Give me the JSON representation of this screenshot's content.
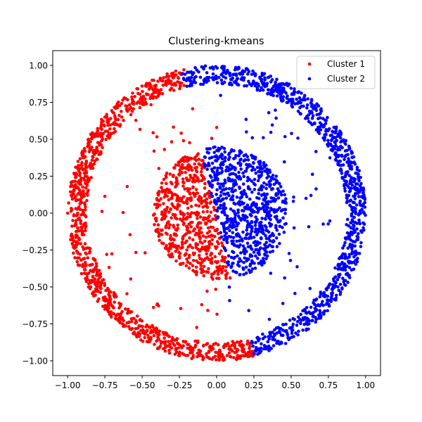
{
  "chart_data": {
    "type": "scatter",
    "title": "Clustering-kmeans",
    "xlabel": "",
    "ylabel": "",
    "xlim": [
      -1.1,
      1.1
    ],
    "ylim": [
      -1.1,
      1.1
    ],
    "xticks": [
      -1.0,
      -0.75,
      -0.5,
      -0.25,
      0.0,
      0.25,
      0.5,
      0.75,
      1.0
    ],
    "yticks": [
      -1.0,
      -0.75,
      -0.5,
      -0.25,
      0.0,
      0.25,
      0.5,
      0.75,
      1.0
    ],
    "xtick_labels": [
      "−1.00",
      "−0.75",
      "−0.50",
      "−0.25",
      "0.00",
      "0.25",
      "0.50",
      "0.75",
      "1.00"
    ],
    "ytick_labels": [
      "−1.00",
      "−0.75",
      "−0.50",
      "−0.25",
      "0.00",
      "0.25",
      "0.50",
      "0.75",
      "1.00"
    ],
    "grid": false,
    "legend_position": "top-right",
    "series": [
      {
        "name": "Cluster 1",
        "color": "#ff0000",
        "description": "outer ring left part (angles ~104° to ~285°) and inner disk left of a slanted split line; sparse noise points",
        "points": [
          [
            -0.22,
            0.97
          ],
          [
            -0.45,
            0.88
          ],
          [
            -0.62,
            0.78
          ],
          [
            -0.75,
            0.65
          ],
          [
            -0.86,
            0.5
          ],
          [
            -0.93,
            0.35
          ],
          [
            -0.98,
            0.18
          ],
          [
            -1.0,
            0.0
          ],
          [
            -0.98,
            -0.18
          ],
          [
            -0.93,
            -0.35
          ],
          [
            -0.86,
            -0.5
          ],
          [
            -0.75,
            -0.65
          ],
          [
            -0.62,
            -0.76
          ],
          [
            -0.45,
            -0.87
          ],
          [
            -0.25,
            -0.95
          ],
          [
            -0.05,
            -0.98
          ],
          [
            0.15,
            -0.97
          ],
          [
            -0.2,
            0.3
          ],
          [
            -0.3,
            0.1
          ],
          [
            -0.32,
            -0.1
          ],
          [
            -0.2,
            -0.25
          ],
          [
            -0.1,
            -0.4
          ],
          [
            -0.15,
            0.0
          ],
          [
            -0.05,
            0.2
          ],
          [
            -0.42,
            0.42
          ],
          [
            -0.6,
            0.18
          ],
          [
            -0.4,
            -0.62
          ],
          [
            -0.1,
            -0.62
          ]
        ]
      },
      {
        "name": "Cluster 2",
        "color": "#0000ff",
        "description": "outer ring right part (angles ~-75° to ~104°) and inner disk right of a slanted split line; sparse noise points",
        "points": [
          [
            -0.1,
            0.99
          ],
          [
            0.15,
            0.98
          ],
          [
            0.35,
            0.92
          ],
          [
            0.55,
            0.82
          ],
          [
            0.7,
            0.7
          ],
          [
            0.83,
            0.55
          ],
          [
            0.92,
            0.38
          ],
          [
            0.97,
            0.2
          ],
          [
            0.99,
            0.0
          ],
          [
            0.97,
            -0.2
          ],
          [
            0.92,
            -0.38
          ],
          [
            0.83,
            -0.55
          ],
          [
            0.7,
            -0.7
          ],
          [
            0.55,
            -0.8
          ],
          [
            0.35,
            -0.9
          ],
          [
            0.25,
            -0.95
          ],
          [
            0.1,
            0.3
          ],
          [
            0.25,
            0.2
          ],
          [
            0.35,
            0.0
          ],
          [
            0.25,
            -0.2
          ],
          [
            0.1,
            -0.3
          ],
          [
            0.05,
            0.05
          ],
          [
            0.4,
            0.25
          ],
          [
            0.6,
            0.1
          ],
          [
            0.52,
            -0.1
          ],
          [
            0.2,
            0.55
          ],
          [
            0.35,
            0.68
          ]
        ]
      }
    ]
  }
}
